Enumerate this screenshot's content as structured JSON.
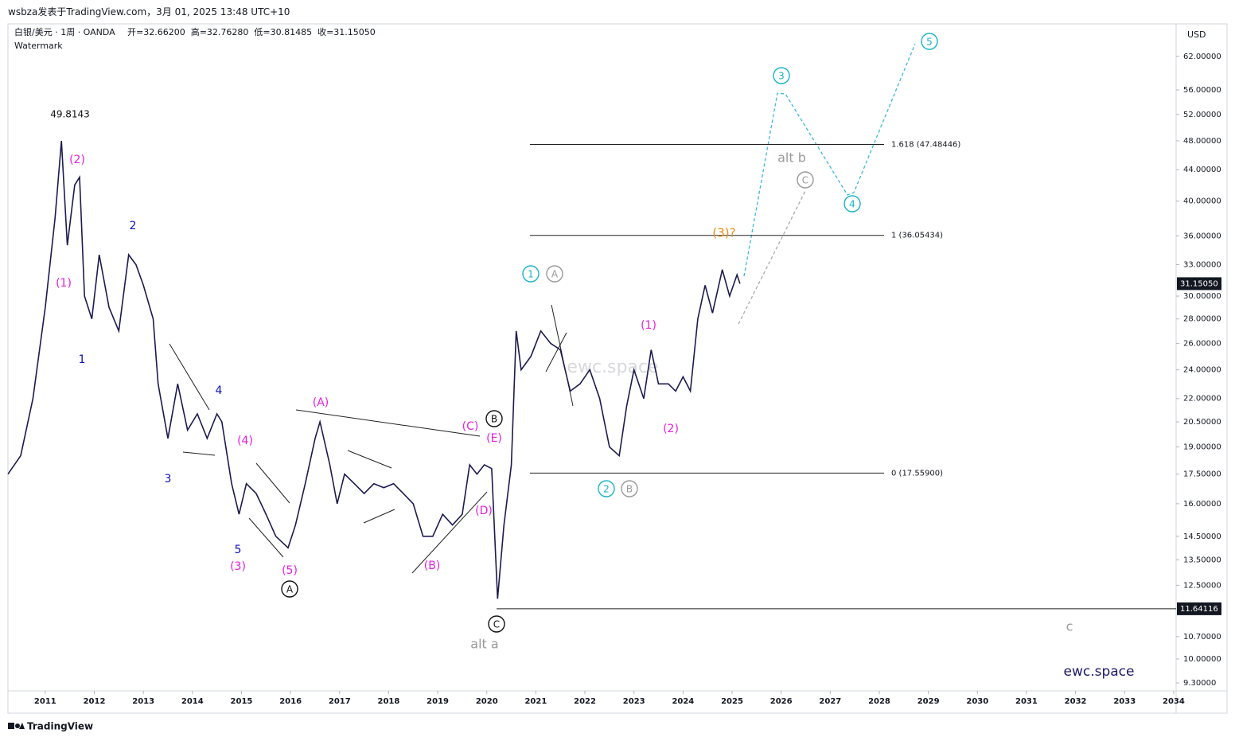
{
  "header": {
    "title": "wsbza发表于TradingView.com，3月 01, 2025 13:48 UTC+10"
  },
  "legend": {
    "symbol": "白银/美元 · 1周 · OANDA",
    "ohlc": "开=32.66200  高=32.76280  低=30.81485  收=31.15050",
    "watermark": "Watermark"
  },
  "currency": "USD",
  "footer": {
    "brand": "TradingView"
  },
  "chart_data": {
    "type": "line",
    "log_scale": true,
    "color": "#1c1a4f",
    "xlim": [
      2010.24,
      2034.05
    ],
    "ylim": [
      9.08,
      68.4
    ],
    "xticks": [
      2011,
      2012,
      2013,
      2014,
      2015,
      2016,
      2017,
      2018,
      2019,
      2020,
      2021,
      2022,
      2023,
      2024,
      2025,
      2026,
      2027,
      2028,
      2029,
      2030,
      2031,
      2032,
      2033,
      2034
    ],
    "yticks": [
      {
        "value": 62,
        "label": "62.00000"
      },
      {
        "value": 56,
        "label": "56.00000"
      },
      {
        "value": 52,
        "label": "52.00000"
      },
      {
        "value": 48,
        "label": "48.00000"
      },
      {
        "value": 44,
        "label": "44.00000"
      },
      {
        "value": 40,
        "label": "40.00000"
      },
      {
        "value": 36,
        "label": "36.00000"
      },
      {
        "value": 33,
        "label": "33.00000"
      },
      {
        "value": 30,
        "label": "30.00000"
      },
      {
        "value": 28,
        "label": "28.00000"
      },
      {
        "value": 26,
        "label": "26.00000"
      },
      {
        "value": 24,
        "label": "24.00000"
      },
      {
        "value": 22,
        "label": "22.00000"
      },
      {
        "value": 20.5,
        "label": "20.50000"
      },
      {
        "value": 19,
        "label": "19.00000"
      },
      {
        "value": 17.5,
        "label": "17.50000"
      },
      {
        "value": 16,
        "label": "16.00000"
      },
      {
        "value": 14.5,
        "label": "14.50000"
      },
      {
        "value": 13.5,
        "label": "13.50000"
      },
      {
        "value": 12.5,
        "label": "12.50000"
      },
      {
        "value": 10.7,
        "label": "10.70000"
      },
      {
        "value": 10,
        "label": "10.00000"
      },
      {
        "value": 9.3,
        "label": "9.30000"
      }
    ],
    "x": [
      2010.24,
      2010.5,
      2010.75,
      2011.0,
      2011.2,
      2011.33,
      2011.45,
      2011.6,
      2011.7,
      2011.8,
      2011.95,
      2012.1,
      2012.3,
      2012.5,
      2012.7,
      2012.85,
      2013.0,
      2013.2,
      2013.3,
      2013.5,
      2013.7,
      2013.9,
      2014.1,
      2014.3,
      2014.5,
      2014.6,
      2014.8,
      2014.95,
      2015.1,
      2015.3,
      2015.5,
      2015.7,
      2015.95,
      2016.1,
      2016.3,
      2016.5,
      2016.6,
      2016.8,
      2016.95,
      2017.1,
      2017.3,
      2017.5,
      2017.7,
      2017.9,
      2018.1,
      2018.3,
      2018.5,
      2018.7,
      2018.9,
      2019.1,
      2019.3,
      2019.5,
      2019.65,
      2019.8,
      2019.95,
      2020.1,
      2020.22,
      2020.35,
      2020.5,
      2020.6,
      2020.7,
      2020.9,
      2021.1,
      2021.3,
      2021.5,
      2021.7,
      2021.9,
      2022.1,
      2022.3,
      2022.5,
      2022.7,
      2022.85,
      2023.0,
      2023.2,
      2023.35,
      2023.5,
      2023.7,
      2023.85,
      2024.0,
      2024.15,
      2024.3,
      2024.45,
      2024.6,
      2024.8,
      2024.95,
      2025.1,
      2025.16
    ],
    "values": [
      17.5,
      18.5,
      22,
      29,
      38,
      48,
      35,
      42,
      43,
      30,
      28,
      34,
      29,
      27,
      34,
      33,
      31,
      28,
      23,
      19.5,
      23,
      20,
      21,
      19.5,
      21,
      20.5,
      17,
      15.5,
      17,
      16.5,
      15.5,
      14.5,
      14,
      15,
      17,
      19.5,
      20.5,
      18,
      16,
      17.5,
      17,
      16.5,
      17,
      16.8,
      17,
      16.5,
      16,
      14.5,
      14.5,
      15.5,
      15,
      15.5,
      18,
      17.5,
      18,
      17.8,
      12,
      15,
      18,
      27,
      24,
      25,
      27,
      26,
      25.5,
      22.5,
      23,
      24,
      22,
      19,
      18.5,
      21.5,
      24,
      22,
      25.5,
      23,
      23,
      22.5,
      23.5,
      22.5,
      28,
      31,
      28.5,
      32.5,
      30,
      32,
      31.15
    ],
    "fib_levels": [
      {
        "value": 47.48446,
        "label": "1.618 (47.48446)"
      },
      {
        "value": 36.05434,
        "label": "1 (36.05434)"
      },
      {
        "value": 17.559,
        "label": "0 (17.55900)"
      }
    ],
    "support": {
      "value": 11.64116,
      "label": "11.64116"
    },
    "last_price": {
      "value": 31.1505,
      "label": "31.15050"
    },
    "annotations": [
      "49.8143",
      "(2)",
      "(1)",
      "1",
      "2",
      "3",
      "4",
      "5",
      "(3)",
      "(4)",
      "(5)",
      "A",
      "(A)",
      "(B)",
      "(C)",
      "(D)",
      "(E)",
      "B",
      "C",
      "alt a",
      "1",
      "A",
      "2",
      "B",
      "(1)",
      "(2)",
      "(3)?",
      "alt b",
      "C",
      "3",
      "4",
      "5",
      "c",
      "ewc.space"
    ]
  }
}
